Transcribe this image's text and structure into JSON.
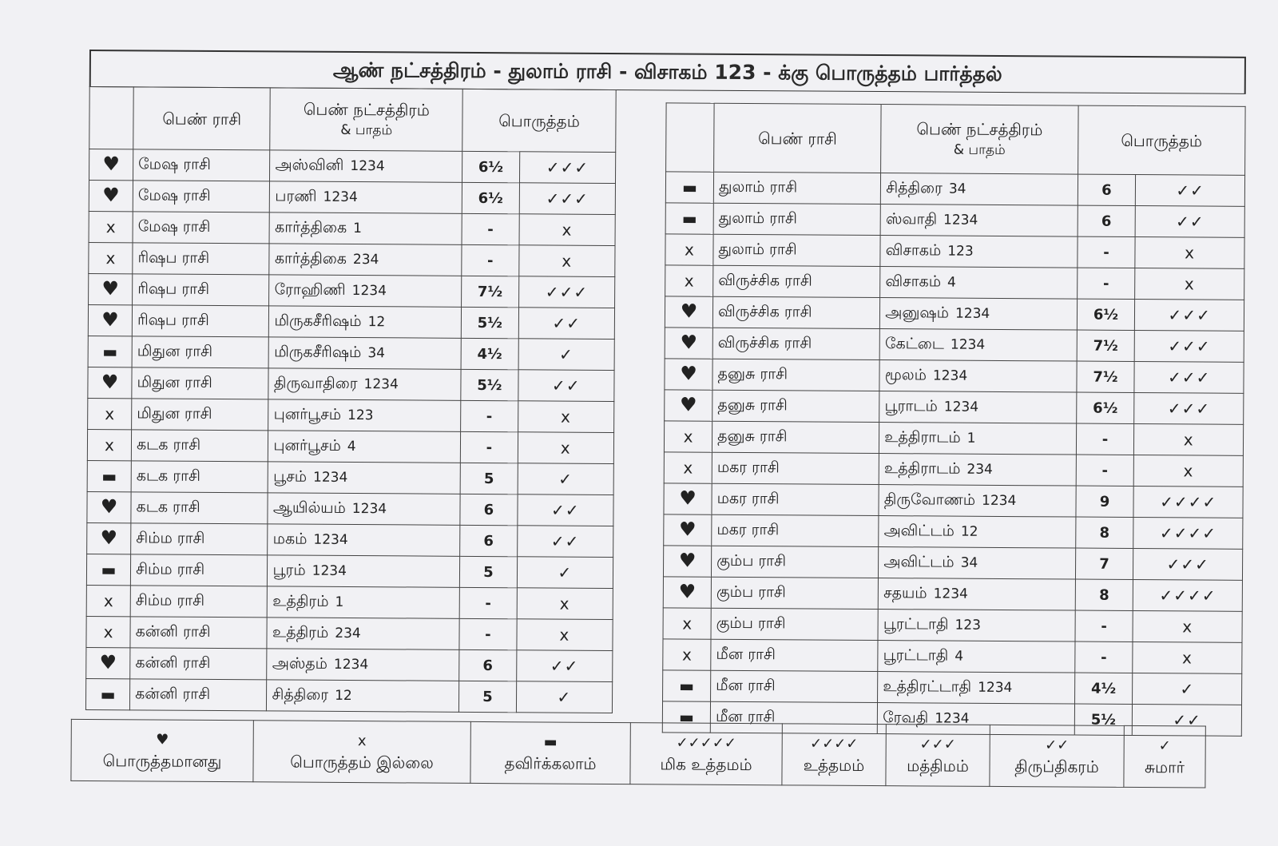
{
  "title": "ஆண் நட்சத்திரம் - துலாம் ராசி - விசாகம் 123 - க்கு பொருத்தம் பார்த்தல்",
  "headers": {
    "rasi": "பெண் ராசி",
    "star": "பெண் நட்சத்திரம்",
    "star_sub": "& பாதம்",
    "match": "பொருத்தம்"
  },
  "icons": {
    "heart": "♥",
    "x": "x",
    "dash": "▬"
  },
  "left_rows": [
    {
      "mark": "heart",
      "rasi": "மேஷ ராசி",
      "star": "அஸ்வினி",
      "pada": "1234",
      "score": "6½",
      "checks": "✓✓✓"
    },
    {
      "mark": "heart",
      "rasi": "மேஷ ராசி",
      "star": "பரணி",
      "pada": "1234",
      "score": "6½",
      "checks": "✓✓✓"
    },
    {
      "mark": "x",
      "rasi": "மேஷ ராசி",
      "star": "கார்த்திகை",
      "pada": "1",
      "score": "-",
      "checks": "x"
    },
    {
      "mark": "x",
      "rasi": "ரிஷப ராசி",
      "star": "கார்த்திகை",
      "pada": "234",
      "score": "-",
      "checks": "x"
    },
    {
      "mark": "heart",
      "rasi": "ரிஷப ராசி",
      "star": "ரோஹிணி",
      "pada": "1234",
      "score": "7½",
      "checks": "✓✓✓"
    },
    {
      "mark": "heart",
      "rasi": "ரிஷப ராசி",
      "star": "மிருகசீரிஷம்",
      "pada": "12",
      "score": "5½",
      "checks": "✓✓"
    },
    {
      "mark": "dash",
      "rasi": "மிதுன ராசி",
      "star": "மிருகசீரிஷம்",
      "pada": "34",
      "score": "4½",
      "checks": "✓"
    },
    {
      "mark": "heart",
      "rasi": "மிதுன ராசி",
      "star": "திருவாதிரை",
      "pada": "1234",
      "score": "5½",
      "checks": "✓✓"
    },
    {
      "mark": "x",
      "rasi": "மிதுன ராசி",
      "star": "புனர்பூசம்",
      "pada": "123",
      "score": "-",
      "checks": "x"
    },
    {
      "mark": "x",
      "rasi": "கடக ராசி",
      "star": "புனர்பூசம்",
      "pada": "4",
      "score": "-",
      "checks": "x"
    },
    {
      "mark": "dash",
      "rasi": "கடக ராசி",
      "star": "பூசம்",
      "pada": "1234",
      "score": "5",
      "checks": "✓"
    },
    {
      "mark": "heart",
      "rasi": "கடக ராசி",
      "star": "ஆயில்யம்",
      "pada": "1234",
      "score": "6",
      "checks": "✓✓"
    },
    {
      "mark": "heart",
      "rasi": "சிம்ம ராசி",
      "star": "மகம்",
      "pada": "1234",
      "score": "6",
      "checks": "✓✓"
    },
    {
      "mark": "dash",
      "rasi": "சிம்ம ராசி",
      "star": "பூரம்",
      "pada": "1234",
      "score": "5",
      "checks": "✓"
    },
    {
      "mark": "x",
      "rasi": "சிம்ம ராசி",
      "star": "உத்திரம்",
      "pada": "1",
      "score": "-",
      "checks": "x"
    },
    {
      "mark": "x",
      "rasi": "கன்னி ராசி",
      "star": "உத்திரம்",
      "pada": "234",
      "score": "-",
      "checks": "x"
    },
    {
      "mark": "heart",
      "rasi": "கன்னி ராசி",
      "star": "அஸ்தம்",
      "pada": "1234",
      "score": "6",
      "checks": "✓✓"
    },
    {
      "mark": "dash",
      "rasi": "கன்னி ராசி",
      "star": "சித்திரை",
      "pada": "12",
      "score": "5",
      "checks": "✓"
    }
  ],
  "right_rows": [
    {
      "mark": "dash",
      "rasi": "துலாம் ராசி",
      "star": "சித்திரை",
      "pada": "34",
      "score": "6",
      "checks": "✓✓"
    },
    {
      "mark": "dash",
      "rasi": "துலாம் ராசி",
      "star": "ஸ்வாதி",
      "pada": "1234",
      "score": "6",
      "checks": "✓✓"
    },
    {
      "mark": "x",
      "rasi": "துலாம் ராசி",
      "star": "விசாகம்",
      "pada": "123",
      "score": "-",
      "checks": "x"
    },
    {
      "mark": "x",
      "rasi": "விருச்சிக ராசி",
      "star": "விசாகம்",
      "pada": "4",
      "score": "-",
      "checks": "x"
    },
    {
      "mark": "heart",
      "rasi": "விருச்சிக ராசி",
      "star": "அனுஷம்",
      "pada": "1234",
      "score": "6½",
      "checks": "✓✓✓"
    },
    {
      "mark": "heart",
      "rasi": "விருச்சிக ராசி",
      "star": "கேட்டை",
      "pada": "1234",
      "score": "7½",
      "checks": "✓✓✓"
    },
    {
      "mark": "heart",
      "rasi": "தனுசு ராசி",
      "star": "மூலம்",
      "pada": "1234",
      "score": "7½",
      "checks": "✓✓✓"
    },
    {
      "mark": "heart",
      "rasi": "தனுசு ராசி",
      "star": "பூராடம்",
      "pada": "1234",
      "score": "6½",
      "checks": "✓✓✓"
    },
    {
      "mark": "x",
      "rasi": "தனுசு ராசி",
      "star": "உத்திராடம்",
      "pada": "1",
      "score": "-",
      "checks": "x"
    },
    {
      "mark": "x",
      "rasi": "மகர ராசி",
      "star": "உத்திராடம்",
      "pada": "234",
      "score": "-",
      "checks": "x"
    },
    {
      "mark": "heart",
      "rasi": "மகர ராசி",
      "star": "திருவோணம்",
      "pada": "1234",
      "score": "9",
      "checks": "✓✓✓✓"
    },
    {
      "mark": "heart",
      "rasi": "மகர ராசி",
      "star": "அவிட்டம்",
      "pada": "12",
      "score": "8",
      "checks": "✓✓✓✓"
    },
    {
      "mark": "heart",
      "rasi": "கும்ப ராசி",
      "star": "அவிட்டம்",
      "pada": "34",
      "score": "7",
      "checks": "✓✓✓"
    },
    {
      "mark": "heart",
      "rasi": "கும்ப ராசி",
      "star": "சதயம்",
      "pada": "1234",
      "score": "8",
      "checks": "✓✓✓✓"
    },
    {
      "mark": "x",
      "rasi": "கும்ப ராசி",
      "star": "பூரட்டாதி",
      "pada": "123",
      "score": "-",
      "checks": "x"
    },
    {
      "mark": "x",
      "rasi": "மீன ராசி",
      "star": "பூரட்டாதி",
      "pada": "4",
      "score": "-",
      "checks": "x"
    },
    {
      "mark": "dash",
      "rasi": "மீன ராசி",
      "star": "உத்திரட்டாதி",
      "pada": "1234",
      "score": "4½",
      "checks": "✓"
    },
    {
      "mark": "dash",
      "rasi": "மீன ராசி",
      "star": "ரேவதி",
      "pada": "1234",
      "score": "5½",
      "checks": "✓✓"
    }
  ],
  "legend": [
    {
      "symbol": "♥",
      "label": "பொருத்தமானது"
    },
    {
      "symbol": "x",
      "label": "பொருத்தம் இல்லை"
    },
    {
      "symbol": "▬",
      "label": "தவிர்க்கலாம்"
    },
    {
      "symbol": "✓✓✓✓✓",
      "label": "மிக உத்தமம்"
    },
    {
      "symbol": "✓✓✓✓",
      "label": "உத்தமம்"
    },
    {
      "symbol": "✓✓✓",
      "label": "மத்திமம்"
    },
    {
      "symbol": "✓✓",
      "label": "திருப்திகரம்"
    },
    {
      "symbol": "✓",
      "label": "சுமார்"
    }
  ]
}
